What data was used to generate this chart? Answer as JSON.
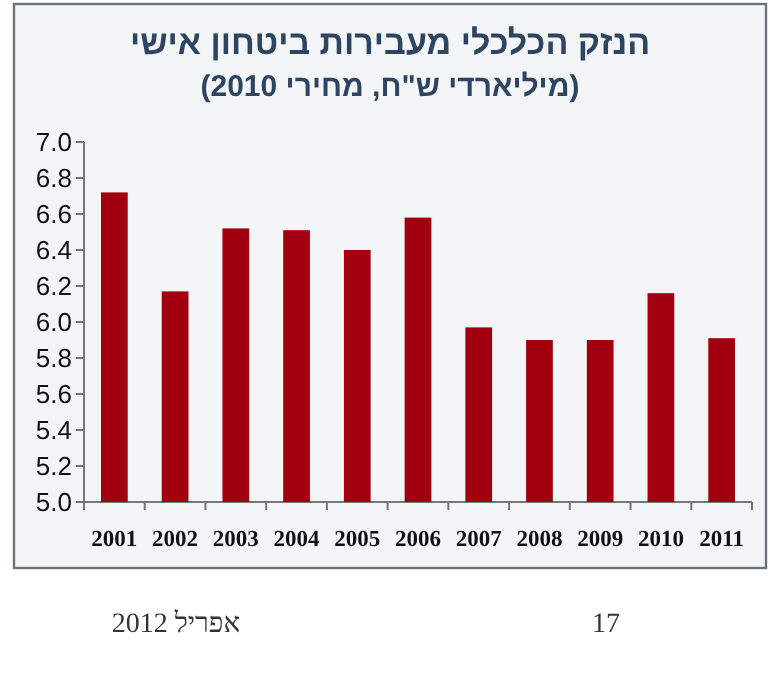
{
  "chart_data": {
    "type": "bar",
    "title": "הנזק הכלכלי מעבירות ביטחון אישי",
    "subtitle": "(מיליארדי ש\"ח, מחירי 2010)",
    "categories": [
      "2001",
      "2002",
      "2003",
      "2004",
      "2005",
      "2006",
      "2007",
      "2008",
      "2009",
      "2010",
      "2011"
    ],
    "values": [
      6.72,
      6.17,
      6.52,
      6.51,
      6.4,
      6.58,
      5.97,
      5.9,
      5.9,
      6.16,
      5.91
    ],
    "color": "#a3000f",
    "ylim": [
      5.0,
      7.0
    ],
    "yticks": [
      {
        "value": 5.0,
        "label": "5.0"
      },
      5.2,
      5.4,
      5.6,
      5.8,
      {
        "value": 6.0,
        "label": "6.0"
      },
      6.2,
      6.4,
      6.6,
      6.8,
      {
        "value": 7.0,
        "label": "7.0"
      }
    ],
    "grid": false,
    "annotations": [
      "אפריל 2012",
      "17"
    ]
  }
}
